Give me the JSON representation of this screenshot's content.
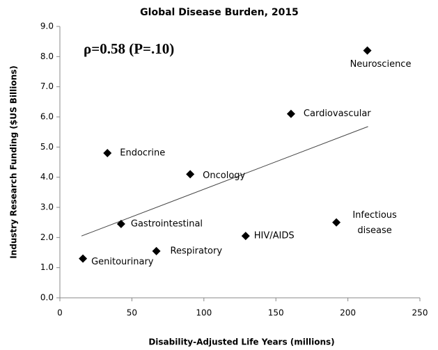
{
  "chart_data": {
    "type": "scatter",
    "title": "Global Disease Burden, 2015",
    "xlabel": "Disability-Adjusted Life Years (millions)",
    "ylabel": "Industry Research Funding ($US Billions)",
    "annotation": "ρ=0.58 (P=.10)",
    "labels": [
      "Genitourinary",
      "Endocrine",
      "Gastrointestinal",
      "Respiratory",
      "Oncology",
      "HIV/AIDS",
      "Cardiovascular",
      [
        "Infectious",
        "disease"
      ],
      "Neuroscience"
    ],
    "x": [
      16,
      33,
      42.5,
      67,
      90.5,
      129,
      160.5,
      192,
      213.5
    ],
    "y": [
      1.3,
      4.8,
      2.45,
      1.55,
      4.1,
      2.05,
      6.1,
      2.5,
      8.2
    ],
    "color": "#000000",
    "trendline": {
      "x": [
        15,
        214
      ],
      "y": [
        2.05,
        5.68
      ]
    },
    "xlim": [
      0,
      250
    ],
    "xticks": [
      0,
      50,
      100,
      150,
      200,
      250
    ],
    "ylim": [
      0,
      9
    ],
    "yticks": [
      {
        "value": 0,
        "label": "0.0"
      },
      {
        "value": 1,
        "label": "1.0"
      },
      {
        "value": 2,
        "label": "2.0"
      },
      {
        "value": 3,
        "label": "3.0"
      },
      {
        "value": 4,
        "label": "4.0"
      },
      {
        "value": 5,
        "label": "5.0"
      },
      {
        "value": 6,
        "label": "6.0"
      },
      {
        "value": 7,
        "label": "7.0"
      },
      {
        "value": 8,
        "label": "8.0"
      },
      {
        "value": 9,
        "label": "9.0"
      }
    ],
    "grid": false
  }
}
